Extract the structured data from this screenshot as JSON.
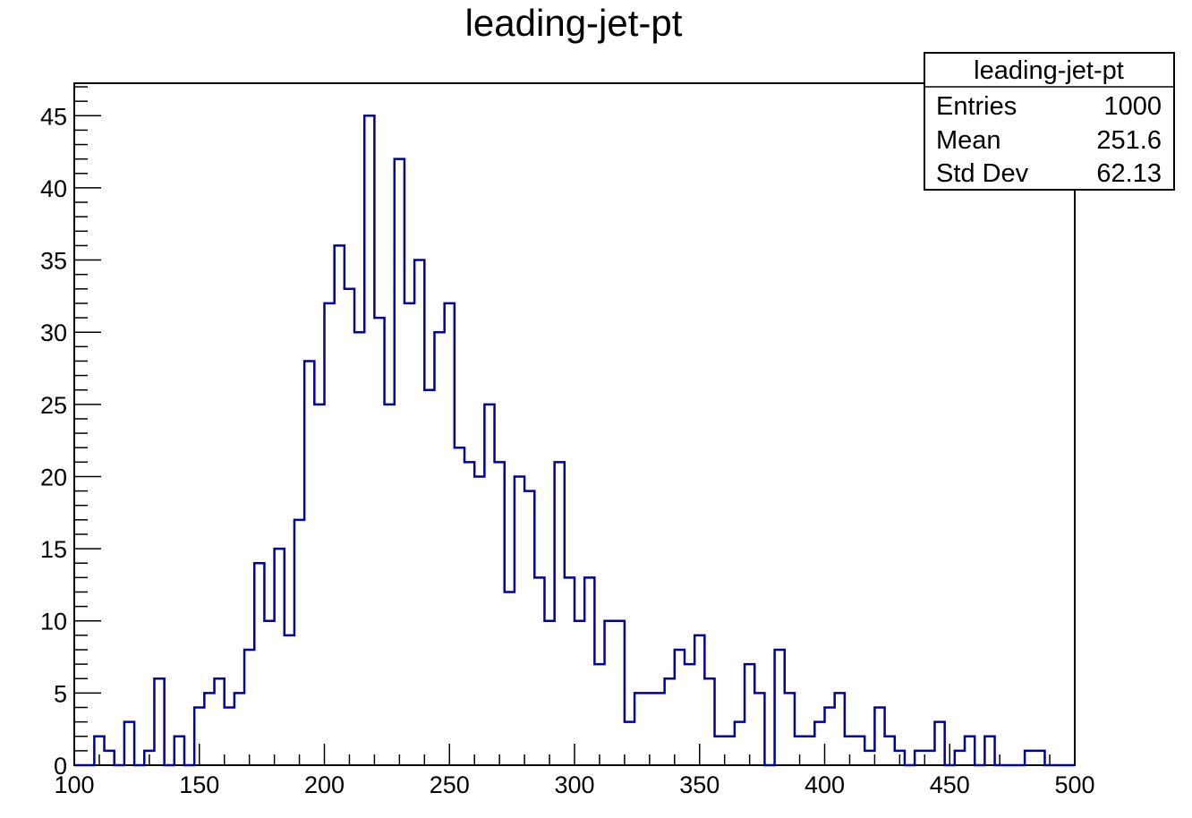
{
  "chart_data": {
    "type": "bar",
    "title": "leading-jet-pt",
    "xlabel": "",
    "ylabel": "",
    "xlim": [
      100,
      500
    ],
    "ylim": [
      0,
      47.25
    ],
    "grid": false,
    "bin_width": 4,
    "bin_edges_start": 100,
    "x_ticks": [
      100,
      150,
      200,
      250,
      300,
      350,
      400,
      450,
      500
    ],
    "y_ticks": [
      0,
      5,
      10,
      15,
      20,
      25,
      30,
      35,
      40,
      45
    ],
    "line_color": "#000099",
    "values": [
      0,
      0,
      2,
      1,
      0,
      3,
      0,
      1,
      6,
      0,
      2,
      0,
      4,
      5,
      6,
      4,
      5,
      8,
      14,
      10,
      15,
      9,
      17,
      28,
      25,
      32,
      36,
      33,
      30,
      45,
      31,
      25,
      42,
      32,
      35,
      26,
      30,
      32,
      22,
      21,
      20,
      25,
      21,
      12,
      20,
      19,
      13,
      10,
      21,
      13,
      10,
      13,
      7,
      10,
      10,
      3,
      5,
      5,
      5,
      6,
      8,
      7,
      9,
      6,
      2,
      2,
      3,
      7,
      5,
      0,
      8,
      5,
      2,
      2,
      3,
      4,
      5,
      2,
      2,
      1,
      4,
      2,
      1,
      0,
      1,
      1,
      3,
      0,
      1,
      2,
      0,
      2,
      0,
      0,
      0,
      1,
      1,
      0,
      0,
      0
    ],
    "stats": {
      "title": "leading-jet-pt",
      "rows": [
        {
          "label": "Entries",
          "value": "1000"
        },
        {
          "label": "Mean",
          "value": "251.6"
        },
        {
          "label": "Std Dev",
          "value": "62.13"
        }
      ]
    }
  }
}
